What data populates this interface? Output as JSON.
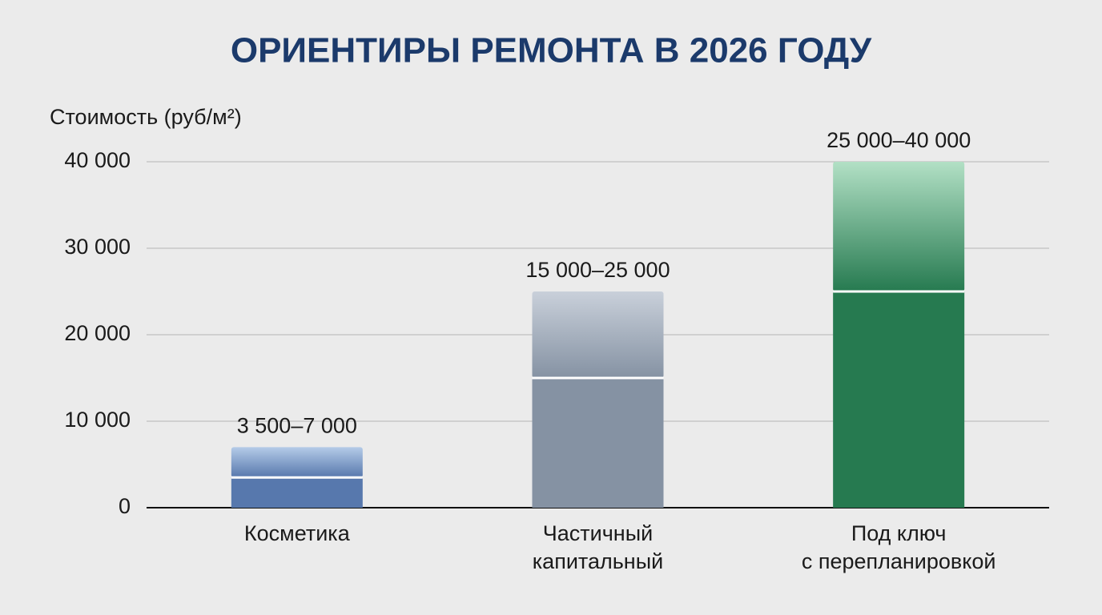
{
  "chart_data": {
    "type": "range_bar",
    "title": "ОРИЕНТИРЫ РЕМОНТА В 2026 ГОДУ",
    "y_label": "Стоимость (руб/м²)",
    "categories": [
      [
        "Косметика"
      ],
      [
        "Частичный",
        "капитальный"
      ],
      [
        "Под ключ",
        "с перепланировкой"
      ]
    ],
    "low": [
      3500,
      15000,
      25000
    ],
    "high": [
      7000,
      25000,
      40000
    ],
    "value_labels": [
      "3 500–7 000",
      "15 000–25 000",
      "25 000–40 000"
    ],
    "colors": [
      "#5778ad",
      "#8592a3",
      "#267a50"
    ],
    "top_colors": [
      "#b4cbe8",
      "#c9d0da",
      "#b2e0c5"
    ],
    "ylim": [
      0,
      40000
    ],
    "yticks": [
      0,
      {
        "value": 10000,
        "label": "10 000"
      },
      {
        "value": 20000,
        "label": "20 000"
      },
      {
        "value": 30000,
        "label": "30 000"
      },
      {
        "value": 40000,
        "label": "40 000"
      }
    ],
    "grid": true
  }
}
